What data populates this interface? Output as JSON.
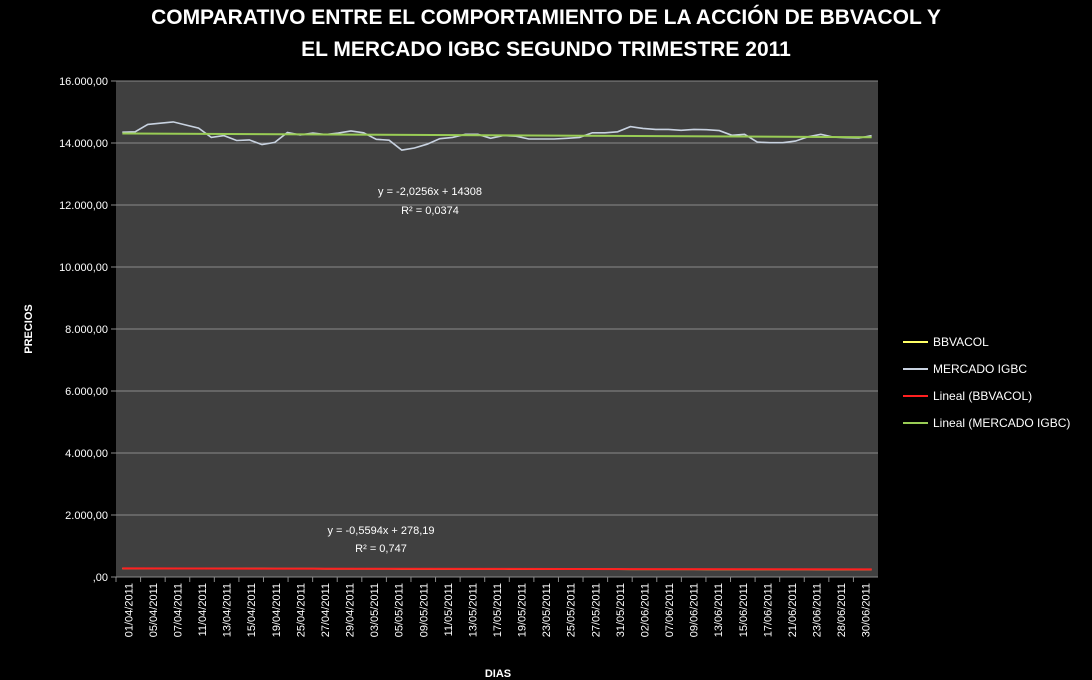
{
  "chart_data": {
    "type": "line",
    "title_lines": [
      "COMPARATIVO ENTRE EL COMPORTAMIENTO DE LA ACCIÓN DE BBVACOL Y",
      "EL MERCADO IGBC SEGUNDO TRIMESTRE 2011"
    ],
    "xlabel": "DIAS",
    "ylabel": "PRECIOS",
    "ylim": [
      0,
      16000
    ],
    "yticks": [
      {
        "value": 0,
        "label": ",00"
      },
      {
        "value": 2000,
        "label": "2.000,00"
      },
      {
        "value": 4000,
        "label": "4.000,00"
      },
      {
        "value": 6000,
        "label": "6.000,00"
      },
      {
        "value": 8000,
        "label": "8.000,00"
      },
      {
        "value": 10000,
        "label": "10.000,00"
      },
      {
        "value": 12000,
        "label": "12.000,00"
      },
      {
        "value": 14000,
        "label": "14.000,00"
      },
      {
        "value": 16000,
        "label": "16.000,00"
      }
    ],
    "grid": "horizontal",
    "legend_position": "right",
    "x_tick_labels": [
      "01/04/2011",
      "05/04/2011",
      "07/04/2011",
      "11/04/2011",
      "13/04/2011",
      "15/04/2011",
      "19/04/2011",
      "25/04/2011",
      "27/04/2011",
      "29/04/2011",
      "03/05/2011",
      "05/05/2011",
      "09/05/2011",
      "11/05/2011",
      "13/05/2011",
      "17/05/2011",
      "19/05/2011",
      "23/05/2011",
      "25/05/2011",
      "27/05/2011",
      "31/05/2011",
      "02/06/2011",
      "07/06/2011",
      "09/06/2011",
      "13/06/2011",
      "15/06/2011",
      "17/06/2011",
      "21/06/2011",
      "23/06/2011",
      "28/06/2011",
      "30/06/2011"
    ],
    "x_count": 60,
    "series": [
      {
        "name": "BBVACOL",
        "color": "#ffff66",
        "values": [
          275,
          276,
          277,
          276,
          275,
          274,
          273,
          272,
          273,
          271,
          270,
          270,
          269,
          268,
          268,
          267,
          266,
          266,
          265,
          264,
          264,
          263,
          262,
          262,
          261,
          260,
          260,
          259,
          258,
          258,
          257,
          256,
          256,
          255,
          254,
          254,
          253,
          252,
          252,
          251,
          250,
          249,
          249,
          248,
          247,
          247,
          246,
          245,
          245,
          244,
          243,
          243,
          242,
          241,
          241,
          240,
          240,
          239,
          239,
          238
        ]
      },
      {
        "name": "MERCADO IGBC",
        "color": "#c8d2e0",
        "values": [
          14350,
          14360,
          14600,
          14640,
          14680,
          14580,
          14480,
          14180,
          14240,
          14080,
          14100,
          13950,
          14020,
          14340,
          14260,
          14320,
          14270,
          14320,
          14390,
          14330,
          14120,
          14090,
          13770,
          13840,
          13960,
          14140,
          14180,
          14280,
          14280,
          14150,
          14240,
          14220,
          14130,
          14130,
          14130,
          14150,
          14180,
          14330,
          14330,
          14360,
          14530,
          14470,
          14440,
          14440,
          14410,
          14440,
          14430,
          14400,
          14250,
          14280,
          14030,
          14010,
          14010,
          14060,
          14200,
          14280,
          14190,
          14170,
          14160,
          14240
        ]
      }
    ],
    "trendlines": [
      {
        "name": "Lineal (BBVACOL)",
        "color": "#ff2020",
        "slope": -0.5594,
        "intercept": 278.19,
        "equation": "y = -0,5594x + 278,19",
        "r2": "R² = 0,747"
      },
      {
        "name": "Lineal (MERCADO IGBC)",
        "color": "#99cc55",
        "slope": -2.0256,
        "intercept": 14308,
        "equation": "y = -2,0256x + 14308",
        "r2": "R² = 0,0374"
      }
    ]
  }
}
